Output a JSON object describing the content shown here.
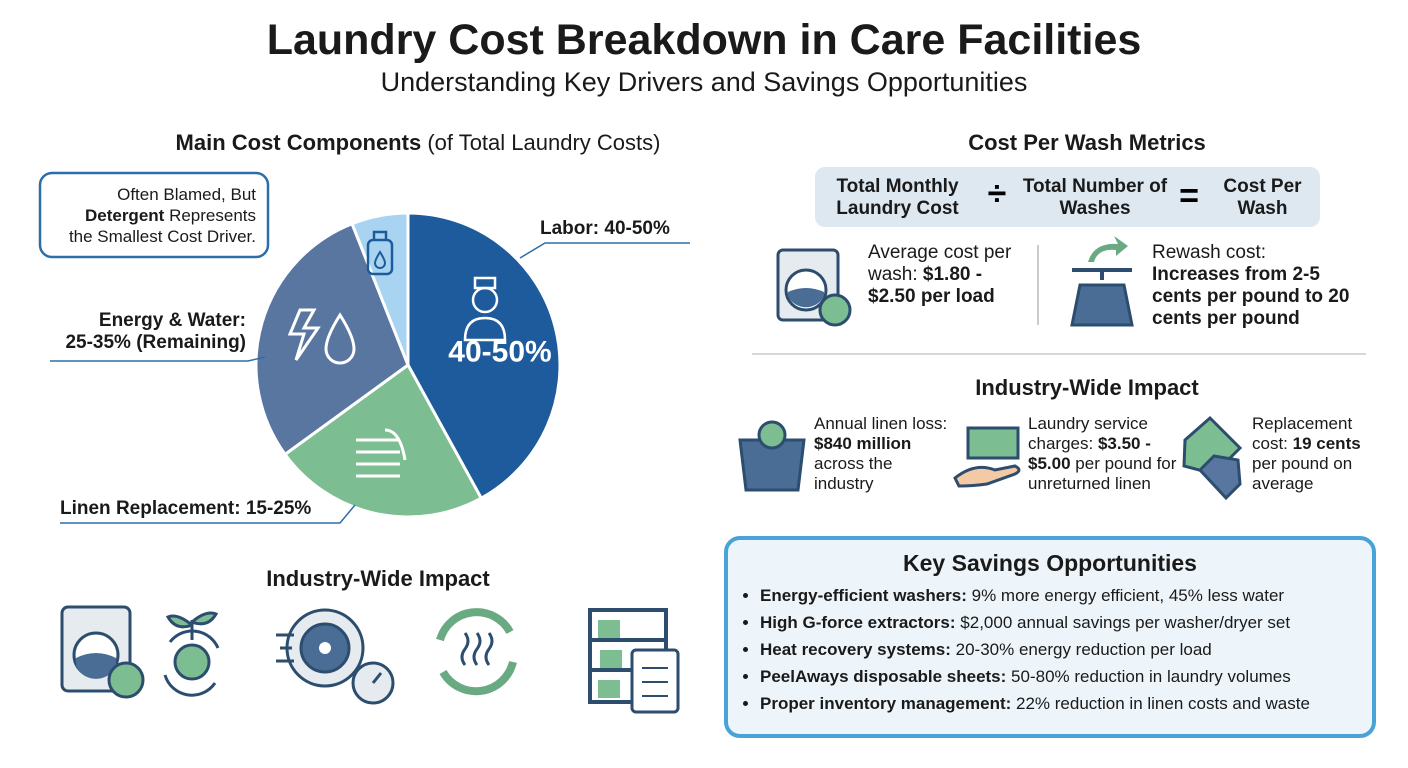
{
  "header": {
    "title": "Laundry Cost Breakdown in Care Facilities",
    "subtitle": "Understanding Key Drivers and Savings Opportunities"
  },
  "chart_data": {
    "type": "pie",
    "title": {
      "bold": "Main Cost Components",
      "text": "(of Total Laundry Costs)"
    },
    "values": [
      42,
      23,
      29,
      6
    ],
    "colors": [
      "#1e5b9c",
      "#7dbd92",
      "#5876a0",
      "#a8d4f2"
    ],
    "value_labels": [
      [
        "Labor: 40-50%"
      ],
      [
        "Linen Replacement: 15-25%"
      ],
      [
        "Energy & Water:",
        "25-35% (Remaining)"
      ]
    ],
    "inner_label": "40-50%",
    "callout": {
      "line1": "Often Blamed, But",
      "bold": "Detergent",
      "rest": "Represents",
      "line3": "the Smallest Cost Driver."
    }
  },
  "left_impact": {
    "title": "Industry-Wide Impact"
  },
  "cost_per_wash": {
    "title": "Cost Per Wash Metrics",
    "formula": [
      "Total Monthly Laundry Cost",
      "Total Number of Washes",
      "Cost Per Wash"
    ],
    "average": {
      "text": "Average cost per wash:",
      "bold": "$1.80 - $2.50 per load"
    },
    "rewash": {
      "text": "Rewash cost:",
      "bold": "Increases from 2-5 cents per pound to 20 cents per pound"
    }
  },
  "industry_impact": {
    "title": "Industry-Wide Impact",
    "items": [
      {
        "text": "Annual linen loss:",
        "bold": "$840 million",
        "rest": "across the industry"
      },
      {
        "text": "Laundry service charges:",
        "bold": "$3.50 - $5.00",
        "rest": "per pound for unreturned linen"
      },
      {
        "text": "Replacement cost:",
        "bold": "19 cents",
        "rest": "per pound on average"
      }
    ]
  },
  "savings": {
    "title": "Key Savings Opportunities",
    "items": [
      {
        "bold": "Energy-efficient washers:",
        "text": "9% more energy efficient, 45% less water"
      },
      {
        "bold": "High G-force extractors:",
        "text": "$2,000 annual savings per washer/dryer set"
      },
      {
        "bold": "Heat recovery systems:",
        "text": "20-30% energy reduction per load"
      },
      {
        "bold": "PeelAways disposable sheets:",
        "text": "50-80% reduction in laundry volumes"
      },
      {
        "bold": "Proper inventory management:",
        "text": "22% reduction in linen costs and waste"
      }
    ]
  }
}
